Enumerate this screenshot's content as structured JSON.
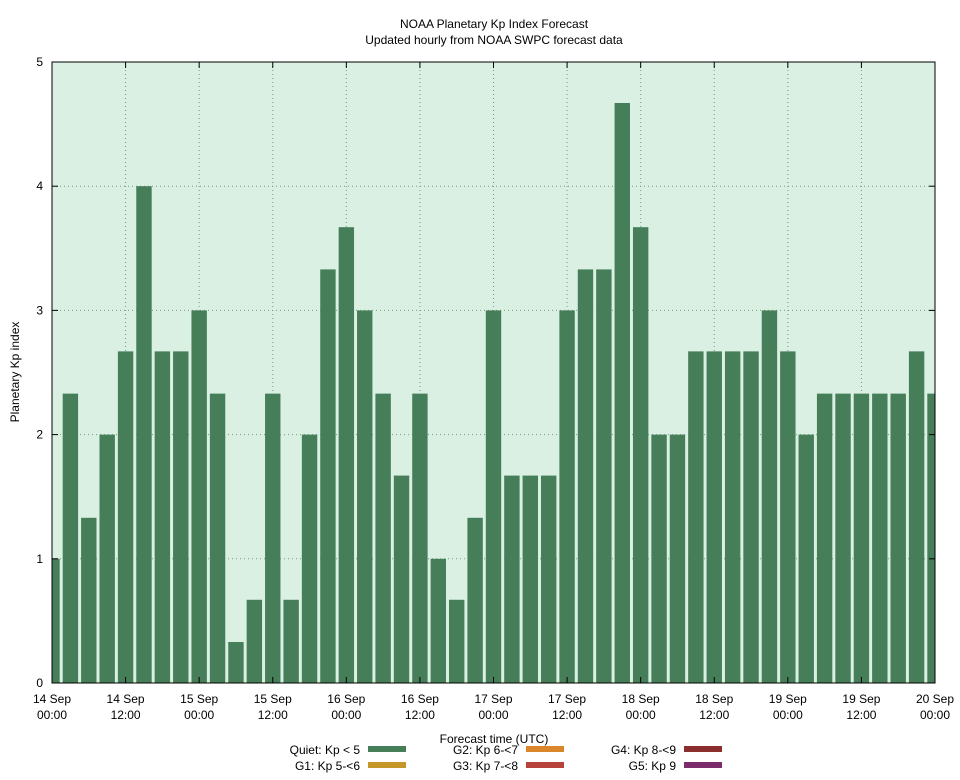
{
  "chart_data": {
    "type": "bar",
    "title": "NOAA Planetary Kp Index Forecast",
    "subtitle": "Updated hourly from NOAA SWPC forecast data",
    "xlabel": "Forecast time (UTC)",
    "ylabel": "Planetary Kp index",
    "ylim": [
      0,
      5
    ],
    "yticks": [
      0,
      1,
      2,
      3,
      4,
      5
    ],
    "grid": true,
    "background_color": "#d9f0e2",
    "interval_hours": 3,
    "x_start": "14 Sep 00:00",
    "x_end": "20 Sep 00:00",
    "xticks": [
      {
        "line1": "14 Sep",
        "line2": "00:00"
      },
      {
        "line1": "14 Sep",
        "line2": "12:00"
      },
      {
        "line1": "15 Sep",
        "line2": "00:00"
      },
      {
        "line1": "15 Sep",
        "line2": "12:00"
      },
      {
        "line1": "16 Sep",
        "line2": "00:00"
      },
      {
        "line1": "16 Sep",
        "line2": "12:00"
      },
      {
        "line1": "17 Sep",
        "line2": "00:00"
      },
      {
        "line1": "17 Sep",
        "line2": "12:00"
      },
      {
        "line1": "18 Sep",
        "line2": "00:00"
      },
      {
        "line1": "18 Sep",
        "line2": "12:00"
      },
      {
        "line1": "19 Sep",
        "line2": "00:00"
      },
      {
        "line1": "19 Sep",
        "line2": "12:00"
      },
      {
        "line1": "20 Sep",
        "line2": "00:00"
      }
    ],
    "values": [
      1.0,
      2.33,
      1.33,
      2.0,
      2.67,
      4.0,
      2.67,
      2.67,
      3.0,
      2.33,
      0.33,
      0.67,
      2.33,
      0.67,
      2.0,
      3.33,
      3.67,
      3.0,
      2.33,
      1.67,
      2.33,
      1.0,
      0.67,
      1.33,
      3.0,
      1.67,
      1.67,
      1.67,
      3.0,
      3.33,
      3.33,
      4.67,
      3.67,
      2.0,
      2.0,
      2.67,
      2.67,
      2.67,
      2.67,
      3.0,
      2.67,
      2.0,
      2.33,
      2.33,
      2.33,
      2.33,
      2.33,
      2.67,
      2.33
    ],
    "bar_color": "#457e59",
    "legend": [
      {
        "label": "Quiet: Kp < 5",
        "color": "#457e59"
      },
      {
        "label": "G1: Kp 5-<6",
        "color": "#c5962a"
      },
      {
        "label": "G2: Kp 6-<7",
        "color": "#d9872a"
      },
      {
        "label": "G3: Kp 7-<8",
        "color": "#b5433c"
      },
      {
        "label": "G4: Kp 8-<9",
        "color": "#8a2e2e"
      },
      {
        "label": "G5: Kp 9",
        "color": "#7d2c6b"
      }
    ],
    "legend_position": "bottom"
  }
}
